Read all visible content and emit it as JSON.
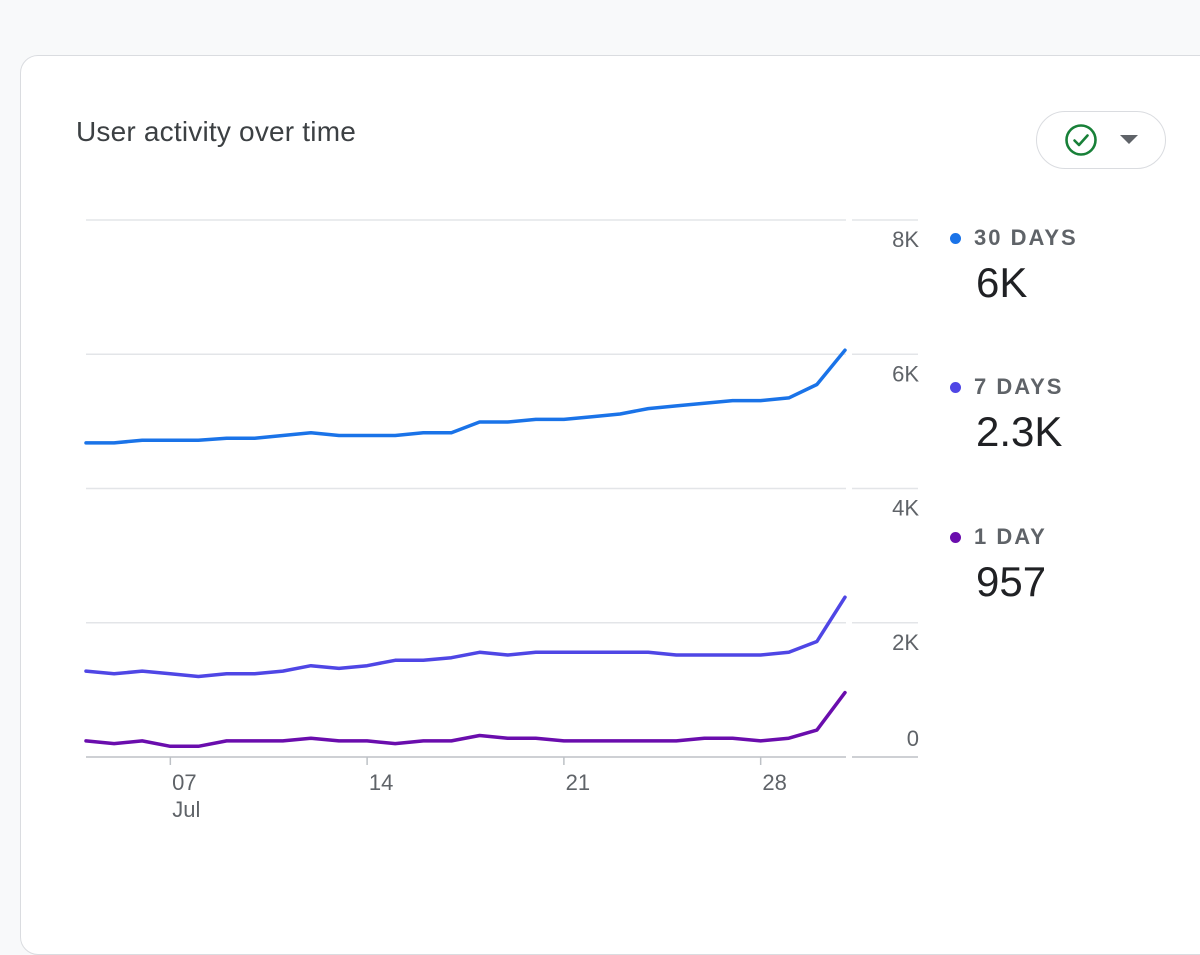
{
  "card": {
    "title": "User activity over time"
  },
  "status": {
    "check_icon_color": "#188038",
    "dropdown_icon": "caret-down-icon"
  },
  "legend": [
    {
      "label": "30 DAYS",
      "value": "6K",
      "color": "#1a73e8"
    },
    {
      "label": "7 DAYS",
      "value": "2.3K",
      "color": "#4f46e5"
    },
    {
      "label": "1 DAY",
      "value": "957",
      "color": "#6a0dad"
    }
  ],
  "chart_data": {
    "type": "line",
    "title": "User activity over time",
    "x_tick_labels": [
      {
        "day": 7,
        "label": "07",
        "sublabel": "Jul"
      },
      {
        "day": 14,
        "label": "14"
      },
      {
        "day": 21,
        "label": "21"
      },
      {
        "day": 28,
        "label": "28"
      }
    ],
    "x": [
      4,
      5,
      6,
      7,
      8,
      9,
      10,
      11,
      12,
      13,
      14,
      15,
      16,
      17,
      18,
      19,
      20,
      21,
      22,
      23,
      24,
      25,
      26,
      27,
      28,
      29,
      30,
      31
    ],
    "y_tick_labels": [
      "0",
      "2K",
      "4K",
      "6K",
      "8K"
    ],
    "ylim": [
      0,
      8000
    ],
    "y_ticks": [
      0,
      2000,
      4000,
      6000,
      8000
    ],
    "grid": true,
    "series": [
      {
        "name": "30 DAYS",
        "color": "#1a73e8",
        "values": [
          4680,
          4680,
          4720,
          4720,
          4720,
          4750,
          4750,
          4790,
          4830,
          4790,
          4790,
          4790,
          4830,
          4830,
          4990,
          4990,
          5030,
          5030,
          5070,
          5110,
          5190,
          5230,
          5270,
          5310,
          5310,
          5350,
          5550,
          6060
        ]
      },
      {
        "name": "7 DAYS",
        "color": "#4f46e5",
        "values": [
          1280,
          1240,
          1280,
          1240,
          1200,
          1240,
          1240,
          1280,
          1360,
          1320,
          1360,
          1440,
          1440,
          1480,
          1560,
          1520,
          1560,
          1560,
          1560,
          1560,
          1560,
          1520,
          1520,
          1520,
          1520,
          1560,
          1720,
          2380
        ]
      },
      {
        "name": "1 DAY",
        "color": "#6a0dad",
        "values": [
          240,
          200,
          240,
          160,
          160,
          240,
          240,
          240,
          280,
          240,
          240,
          200,
          240,
          240,
          320,
          280,
          280,
          240,
          240,
          240,
          240,
          240,
          280,
          280,
          240,
          280,
          400,
          960
        ]
      }
    ]
  }
}
